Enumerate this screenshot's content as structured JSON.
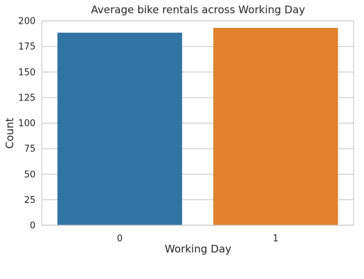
{
  "chart_data": {
    "type": "bar",
    "title": "Average bike rentals across Working Day",
    "xlabel": "Working Day",
    "ylabel": "Count",
    "categories": [
      "0",
      "1"
    ],
    "values": [
      188.5,
      193.2
    ],
    "colors": [
      "#3274a1",
      "#e1812c"
    ],
    "ylim": [
      0,
      200
    ],
    "yticks": [
      0,
      25,
      50,
      75,
      100,
      125,
      150,
      175,
      200
    ],
    "grid": "horizontal",
    "legend": "none"
  }
}
